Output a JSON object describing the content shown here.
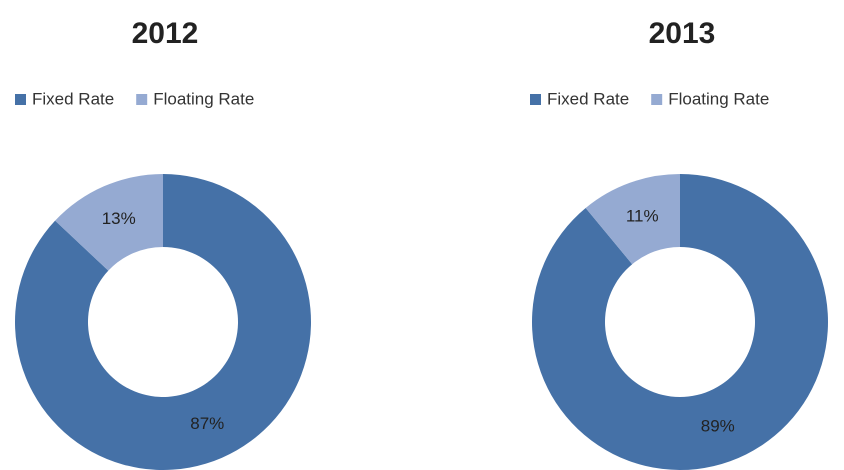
{
  "chart_data": [
    {
      "type": "pie",
      "title": "2012",
      "categories": [
        "Fixed Rate",
        "Floating Rate"
      ],
      "values": [
        87,
        13
      ],
      "value_labels": [
        "87%",
        "13%"
      ],
      "colors": [
        "#4571a7",
        "#95aad2"
      ],
      "donut": true
    },
    {
      "type": "pie",
      "title": "2013",
      "categories": [
        "Fixed Rate",
        "Floating Rate"
      ],
      "values": [
        89,
        11
      ],
      "value_labels": [
        "89%",
        "11%"
      ],
      "colors": [
        "#4571a7",
        "#95aad2"
      ],
      "donut": true
    }
  ]
}
